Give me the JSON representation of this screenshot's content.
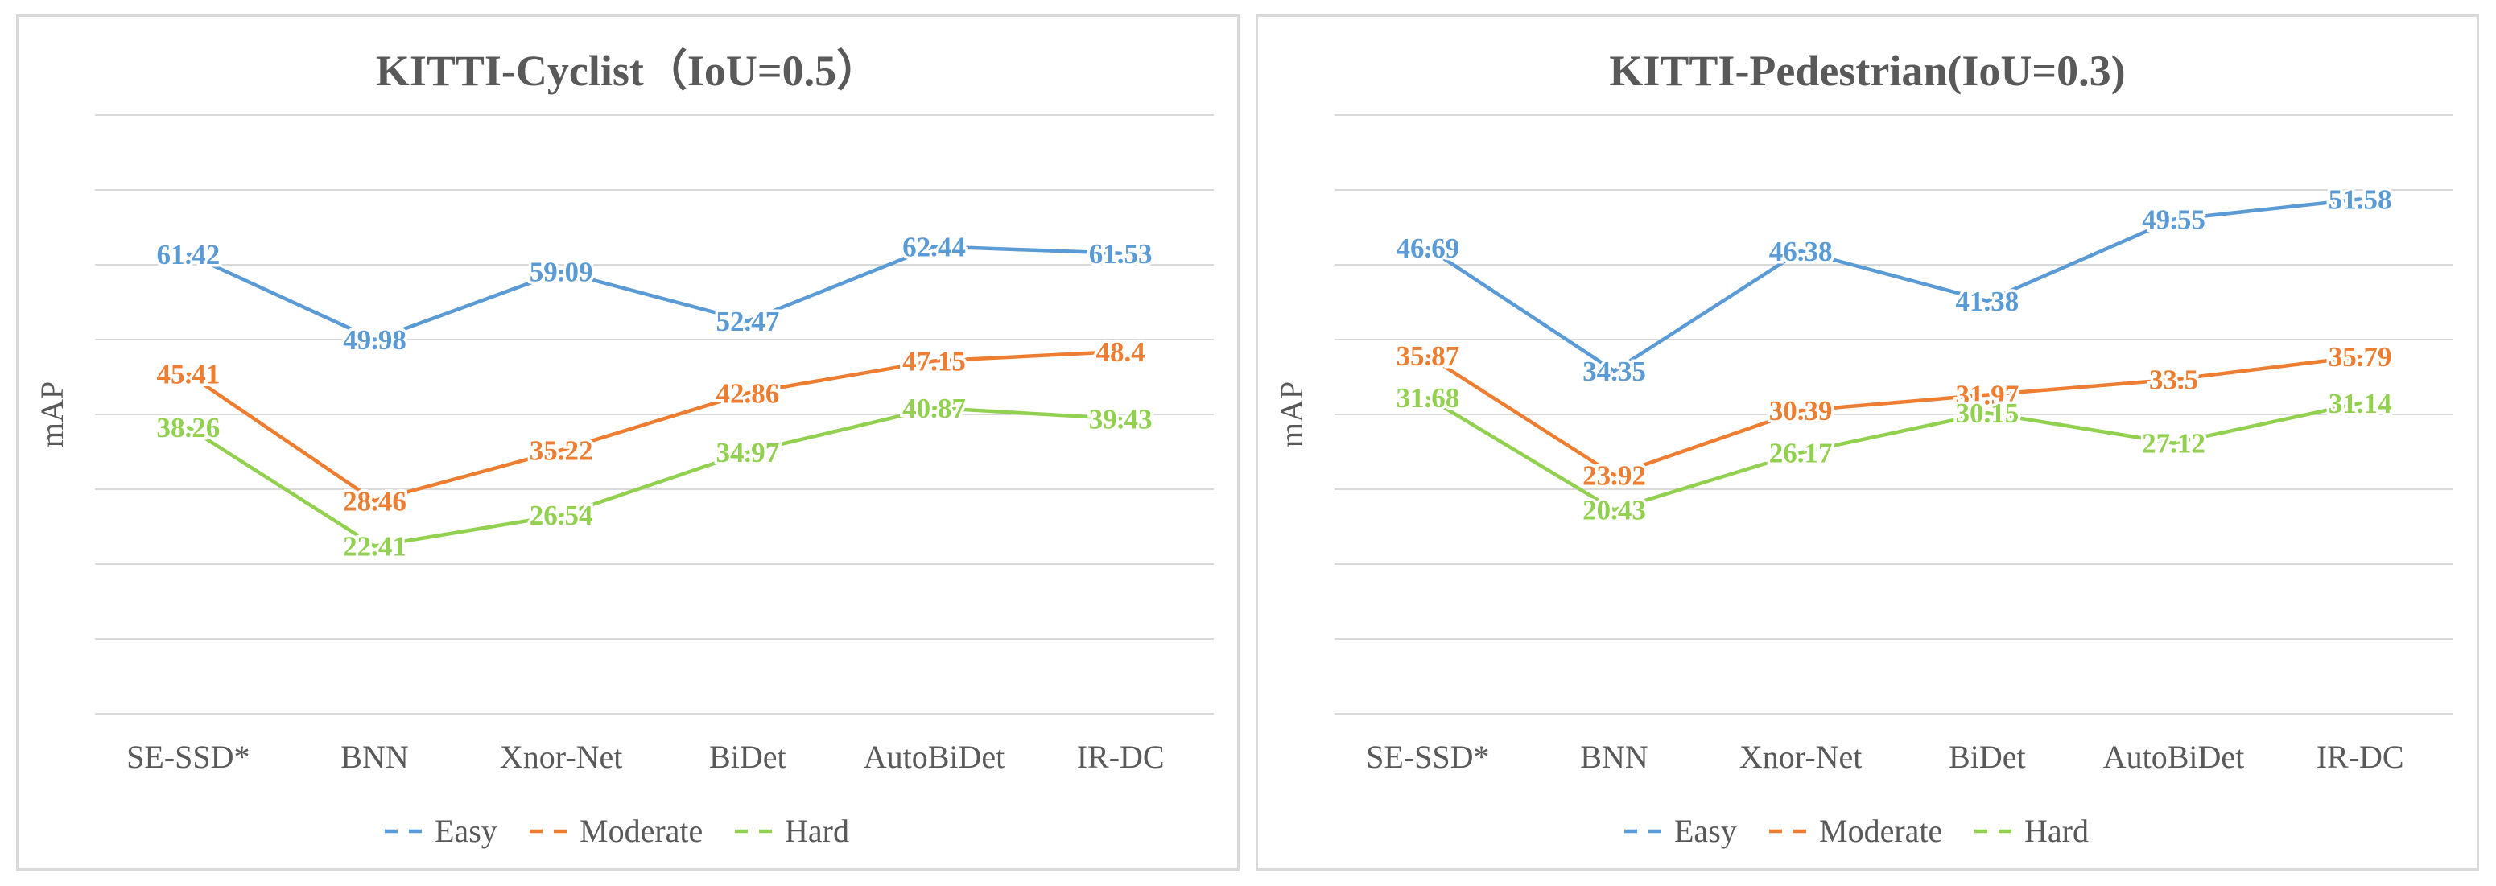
{
  "chart_data": [
    {
      "type": "line",
      "title": "KITTI-Cyclist（IoU=0.5）",
      "xlabel": "",
      "ylabel": "mAP",
      "ylim": [
        0,
        80
      ],
      "grid": true,
      "legend": "bottom",
      "categories": [
        "SE-SSD*",
        "BNN",
        "Xnor-Net",
        "BiDet",
        "AutoBiDet",
        "IR-DC"
      ],
      "series": [
        {
          "name": "Easy",
          "color": "#5b9bd5",
          "values": [
            61.42,
            49.98,
            59.09,
            52.47,
            62.44,
            61.53
          ],
          "labels": [
            "61.42",
            "49.98",
            "59.09",
            "52.47",
            "62.44",
            "61.53"
          ]
        },
        {
          "name": "Moderate",
          "color": "#ed7d31",
          "values": [
            45.41,
            28.46,
            35.22,
            42.86,
            47.15,
            48.4
          ],
          "labels": [
            "45.41",
            "28.46",
            "35.22",
            "42.86",
            "47.15",
            "48.4"
          ]
        },
        {
          "name": "Hard",
          "color": "#92d050",
          "values": [
            38.26,
            22.41,
            26.54,
            34.97,
            40.87,
            39.43
          ],
          "labels": [
            "38.26",
            "22.41",
            "26.54",
            "34.97",
            "40.87",
            "39.43"
          ]
        }
      ]
    },
    {
      "type": "line",
      "title": "KITTI-Pedestrian(IoU=0.3)",
      "xlabel": "",
      "ylabel": "mAP",
      "ylim": [
        0,
        60
      ],
      "grid": true,
      "legend": "bottom",
      "categories": [
        "SE-SSD*",
        "BNN",
        "Xnor-Net",
        "BiDet",
        "AutoBiDet",
        "IR-DC"
      ],
      "series": [
        {
          "name": "Easy",
          "color": "#5b9bd5",
          "values": [
            46.69,
            34.35,
            46.38,
            41.38,
            49.55,
            51.58
          ],
          "labels": [
            "46.69",
            "34.35",
            "46.38",
            "41.38",
            "49.55",
            "51.58"
          ]
        },
        {
          "name": "Moderate",
          "color": "#ed7d31",
          "values": [
            35.87,
            23.92,
            30.39,
            31.97,
            33.5,
            35.79
          ],
          "labels": [
            "35.87",
            "23.92",
            "30.39",
            "31.97",
            "33.5",
            "35.79"
          ]
        },
        {
          "name": "Hard",
          "color": "#92d050",
          "values": [
            31.68,
            20.43,
            26.17,
            30.15,
            27.12,
            31.14
          ],
          "labels": [
            "31.68",
            "20.43",
            "26.17",
            "30.15",
            "27.12",
            "31.14"
          ]
        }
      ]
    }
  ]
}
